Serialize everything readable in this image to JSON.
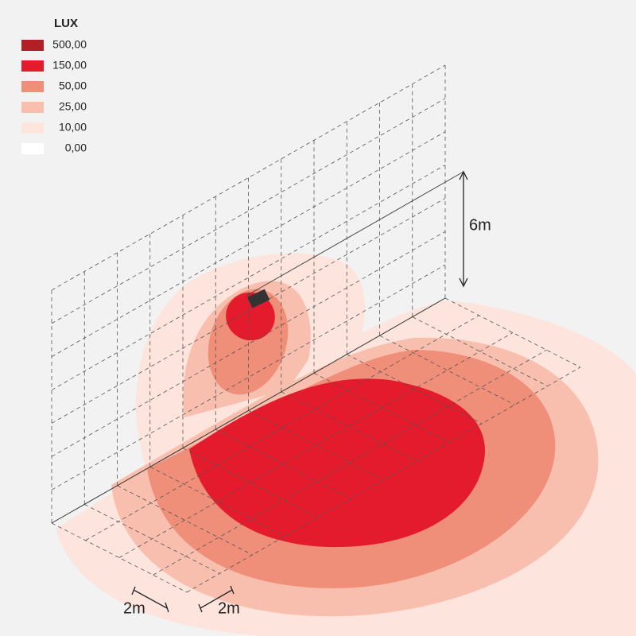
{
  "legend": {
    "title": "LUX",
    "items": [
      {
        "label": "500,00",
        "color": "#b21f24"
      },
      {
        "label": "150,00",
        "color": "#e31b2c"
      },
      {
        "label": "50,00",
        "color": "#f08f79"
      },
      {
        "label": "25,00",
        "color": "#f9bfae"
      },
      {
        "label": "10,00",
        "color": "#fde4dc"
      },
      {
        "label": "0,00",
        "color": "#ffffff"
      }
    ]
  },
  "dimensions": {
    "height": "6m",
    "grid_a": "2m",
    "grid_b": "2m"
  }
}
